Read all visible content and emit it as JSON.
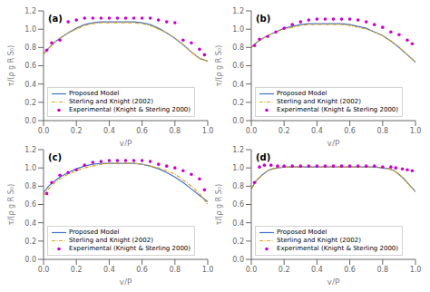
{
  "chart_data": [
    {
      "type": "line",
      "title": "(a)",
      "xlabel": "y/P",
      "ylabel": "τ/(ρ g R S₀)",
      "xlim": [
        0,
        1
      ],
      "ylim": [
        0,
        1.2
      ],
      "xticks": [
        {
          "value": 0,
          "label": "0.0"
        },
        0.2,
        0.4,
        0.6,
        0.8,
        {
          "value": 1,
          "label": "1.0"
        }
      ],
      "yticks": [
        {
          "value": 0,
          "label": "0.0"
        },
        0.2,
        0.4,
        0.6,
        0.8,
        {
          "value": 1,
          "label": "1.0"
        },
        1.2
      ],
      "grid": false,
      "legend": "lower left",
      "series": [
        {
          "name": "Proposed Model",
          "type": "line",
          "color": "#4472C4",
          "line_style": "solid",
          "x": [
            0.0,
            0.03,
            0.07,
            0.1,
            0.15,
            0.2,
            0.25,
            0.3,
            0.35,
            0.4,
            0.45,
            0.5,
            0.55,
            0.6,
            0.65,
            0.7,
            0.75,
            0.8,
            0.85,
            0.9,
            0.95,
            1.0
          ],
          "values": [
            0.73,
            0.79,
            0.86,
            0.9,
            0.96,
            1.01,
            1.05,
            1.07,
            1.08,
            1.08,
            1.08,
            1.08,
            1.08,
            1.07,
            1.05,
            1.01,
            0.96,
            0.9,
            0.83,
            0.75,
            0.68,
            0.65
          ]
        },
        {
          "name": "Sterling and Knight (2002)",
          "type": "line",
          "color": "#DAA520",
          "line_style": "dashdot",
          "x": [
            0.0,
            0.03,
            0.07,
            0.1,
            0.15,
            0.2,
            0.25,
            0.3,
            0.35,
            0.4,
            0.45,
            0.5,
            0.55,
            0.6,
            0.65,
            0.7,
            0.75,
            0.8,
            0.85,
            0.9,
            0.95,
            1.0
          ],
          "values": [
            0.73,
            0.79,
            0.86,
            0.9,
            0.96,
            1.0,
            1.04,
            1.06,
            1.07,
            1.07,
            1.07,
            1.07,
            1.07,
            1.06,
            1.04,
            1.0,
            0.96,
            0.9,
            0.83,
            0.75,
            0.68,
            0.65
          ]
        },
        {
          "name": "Experimental (Knight & Sterling 2000)",
          "type": "scatter",
          "color": "#CC00CC",
          "marker": "circle",
          "x": [
            0.02,
            0.05,
            0.1,
            0.15,
            0.2,
            0.25,
            0.3,
            0.35,
            0.4,
            0.45,
            0.5,
            0.55,
            0.6,
            0.65,
            0.7,
            0.75,
            0.8,
            0.85,
            0.9,
            0.95,
            0.98
          ],
          "values": [
            0.77,
            0.85,
            0.88,
            1.08,
            1.1,
            1.12,
            1.12,
            1.12,
            1.12,
            1.12,
            1.12,
            1.12,
            1.12,
            1.12,
            1.1,
            1.08,
            1.07,
            0.88,
            0.85,
            0.78,
            0.72
          ]
        }
      ]
    },
    {
      "type": "line",
      "title": "(b)",
      "xlabel": "y/P",
      "ylabel": "τ/(ρ g R S₀)",
      "xlim": [
        0,
        1
      ],
      "ylim": [
        0,
        1.2
      ],
      "xticks": [
        {
          "value": 0,
          "label": "0.0"
        },
        0.2,
        0.4,
        0.6,
        0.8,
        {
          "value": 1,
          "label": "1.0"
        }
      ],
      "yticks": [
        {
          "value": 0,
          "label": "0.0"
        },
        0.2,
        0.4,
        0.6,
        0.8,
        {
          "value": 1,
          "label": "1.0"
        },
        1.2
      ],
      "grid": false,
      "legend": "lower left",
      "series": [
        {
          "name": "Proposed Model",
          "type": "line",
          "color": "#4472C4",
          "line_style": "solid",
          "x": [
            0.0,
            0.03,
            0.07,
            0.1,
            0.15,
            0.2,
            0.25,
            0.3,
            0.35,
            0.4,
            0.45,
            0.5,
            0.55,
            0.6,
            0.65,
            0.7,
            0.75,
            0.8,
            0.85,
            0.9,
            0.95,
            1.0
          ],
          "values": [
            0.8,
            0.85,
            0.9,
            0.93,
            0.97,
            1.01,
            1.03,
            1.05,
            1.06,
            1.06,
            1.06,
            1.06,
            1.06,
            1.05,
            1.03,
            1.01,
            0.97,
            0.93,
            0.87,
            0.8,
            0.72,
            0.64
          ]
        },
        {
          "name": "Sterling and Knight (2002)",
          "type": "line",
          "color": "#DAA520",
          "line_style": "dashdot",
          "x": [
            0.0,
            0.03,
            0.07,
            0.1,
            0.15,
            0.2,
            0.25,
            0.3,
            0.35,
            0.4,
            0.45,
            0.5,
            0.55,
            0.6,
            0.65,
            0.7,
            0.75,
            0.8,
            0.85,
            0.9,
            0.95,
            1.0
          ],
          "values": [
            0.8,
            0.85,
            0.9,
            0.93,
            0.97,
            1.0,
            1.02,
            1.04,
            1.05,
            1.05,
            1.05,
            1.05,
            1.05,
            1.04,
            1.02,
            1.0,
            0.97,
            0.93,
            0.87,
            0.8,
            0.72,
            0.64
          ]
        },
        {
          "name": "Experimental (Knight & Sterling 2000)",
          "type": "scatter",
          "color": "#CC00CC",
          "marker": "circle",
          "x": [
            0.02,
            0.05,
            0.1,
            0.15,
            0.2,
            0.25,
            0.3,
            0.35,
            0.4,
            0.45,
            0.5,
            0.55,
            0.6,
            0.65,
            0.7,
            0.75,
            0.8,
            0.85,
            0.9,
            0.95,
            0.98
          ],
          "values": [
            0.82,
            0.89,
            0.92,
            0.97,
            1.01,
            1.05,
            1.08,
            1.1,
            1.11,
            1.11,
            1.11,
            1.11,
            1.11,
            1.1,
            1.08,
            1.05,
            1.02,
            0.97,
            0.94,
            0.88,
            0.84
          ]
        }
      ]
    },
    {
      "type": "line",
      "title": "(c)",
      "xlabel": "y/P",
      "ylabel": "τ/(ρ g R S₀)",
      "xlim": [
        0,
        1
      ],
      "ylim": [
        0,
        1.2
      ],
      "xticks": [
        {
          "value": 0,
          "label": "0.0"
        },
        0.2,
        0.4,
        0.6,
        0.8,
        {
          "value": 1,
          "label": "1.0"
        }
      ],
      "yticks": [
        {
          "value": 0,
          "label": "0.0"
        },
        0.2,
        0.4,
        0.6,
        0.8,
        {
          "value": 1,
          "label": "1.0"
        },
        1.2
      ],
      "grid": false,
      "legend": "lower left",
      "series": [
        {
          "name": "Proposed Model",
          "type": "line",
          "color": "#4472C4",
          "line_style": "solid",
          "x": [
            0.0,
            0.03,
            0.07,
            0.1,
            0.15,
            0.2,
            0.25,
            0.3,
            0.35,
            0.4,
            0.45,
            0.5,
            0.55,
            0.6,
            0.65,
            0.7,
            0.75,
            0.8,
            0.85,
            0.9,
            0.95,
            1.0
          ],
          "values": [
            0.73,
            0.8,
            0.86,
            0.9,
            0.95,
            0.99,
            1.02,
            1.04,
            1.05,
            1.05,
            1.05,
            1.05,
            1.05,
            1.04,
            1.02,
            0.99,
            0.95,
            0.9,
            0.84,
            0.77,
            0.7,
            0.63
          ]
        },
        {
          "name": "Sterling and Knight (2002)",
          "type": "line",
          "color": "#DAA520",
          "line_style": "dashdot",
          "x": [
            0.0,
            0.03,
            0.07,
            0.1,
            0.15,
            0.2,
            0.25,
            0.3,
            0.35,
            0.4,
            0.45,
            0.5,
            0.55,
            0.6,
            0.65,
            0.7,
            0.75,
            0.8,
            0.85,
            0.9,
            0.95,
            1.0
          ],
          "values": [
            0.7,
            0.77,
            0.84,
            0.88,
            0.93,
            0.97,
            1.0,
            1.02,
            1.04,
            1.05,
            1.05,
            1.05,
            1.05,
            1.04,
            1.02,
            1.0,
            0.97,
            0.93,
            0.87,
            0.8,
            0.72,
            0.6
          ]
        },
        {
          "name": "Experimental (Knight & Sterling 2000)",
          "type": "scatter",
          "color": "#CC00CC",
          "marker": "circle",
          "x": [
            0.02,
            0.05,
            0.1,
            0.15,
            0.2,
            0.25,
            0.3,
            0.35,
            0.4,
            0.45,
            0.5,
            0.55,
            0.6,
            0.65,
            0.7,
            0.75,
            0.8,
            0.85,
            0.9,
            0.95,
            0.98
          ],
          "values": [
            0.72,
            0.84,
            0.92,
            0.95,
            0.98,
            1.03,
            1.06,
            1.07,
            1.08,
            1.08,
            1.08,
            1.08,
            1.08,
            1.07,
            1.04,
            1.02,
            1.0,
            0.97,
            0.93,
            0.88,
            0.76
          ]
        }
      ]
    },
    {
      "type": "line",
      "title": "(d)",
      "xlabel": "y/P",
      "ylabel": "τ/(ρ g R S₀)",
      "xlim": [
        0,
        1
      ],
      "ylim": [
        0,
        1.2
      ],
      "xticks": [
        {
          "value": 0,
          "label": "0.0"
        },
        0.2,
        0.4,
        0.6,
        0.8,
        {
          "value": 1,
          "label": "1.0"
        }
      ],
      "yticks": [
        {
          "value": 0,
          "label": "0.0"
        },
        0.2,
        0.4,
        0.6,
        0.8,
        {
          "value": 1,
          "label": "1.0"
        },
        1.2
      ],
      "grid": false,
      "legend": "lower left",
      "series": [
        {
          "name": "Proposed Model",
          "type": "line",
          "color": "#4472C4",
          "line_style": "solid",
          "x": [
            0.0,
            0.03,
            0.07,
            0.1,
            0.13,
            0.16,
            0.2,
            0.25,
            0.3,
            0.4,
            0.5,
            0.6,
            0.7,
            0.75,
            0.8,
            0.84,
            0.87,
            0.9,
            0.93,
            0.96,
            0.98,
            1.0
          ],
          "values": [
            0.77,
            0.86,
            0.93,
            0.97,
            0.99,
            1.0,
            1.01,
            1.01,
            1.01,
            1.01,
            1.01,
            1.01,
            1.01,
            1.01,
            1.0,
            0.99,
            0.97,
            0.93,
            0.88,
            0.82,
            0.78,
            0.74
          ]
        },
        {
          "name": "Sterling and Knight (2002)",
          "type": "line",
          "color": "#DAA520",
          "line_style": "dashdot",
          "x": [
            0.0,
            0.03,
            0.07,
            0.1,
            0.13,
            0.16,
            0.2,
            0.25,
            0.3,
            0.4,
            0.5,
            0.6,
            0.7,
            0.75,
            0.8,
            0.84,
            0.87,
            0.9,
            0.93,
            0.96,
            0.98,
            1.0
          ],
          "values": [
            0.77,
            0.86,
            0.93,
            0.97,
            0.99,
            1.0,
            1.01,
            1.01,
            1.01,
            1.01,
            1.01,
            1.01,
            1.01,
            1.01,
            1.0,
            0.99,
            0.97,
            0.93,
            0.88,
            0.82,
            0.78,
            0.74
          ]
        },
        {
          "name": "Experimental (Knight & Sterling 2000)",
          "type": "scatter",
          "color": "#CC00CC",
          "marker": "circle",
          "x": [
            0.02,
            0.05,
            0.08,
            0.12,
            0.16,
            0.2,
            0.25,
            0.3,
            0.35,
            0.4,
            0.45,
            0.5,
            0.55,
            0.6,
            0.65,
            0.7,
            0.75,
            0.8,
            0.85,
            0.88,
            0.92,
            0.95,
            0.98
          ],
          "values": [
            0.84,
            1.01,
            1.03,
            1.03,
            1.02,
            1.02,
            1.02,
            1.02,
            1.02,
            1.02,
            1.02,
            1.02,
            1.02,
            1.02,
            1.02,
            1.02,
            1.02,
            1.01,
            1.01,
            1.0,
            0.99,
            0.98,
            0.97
          ]
        }
      ]
    }
  ]
}
